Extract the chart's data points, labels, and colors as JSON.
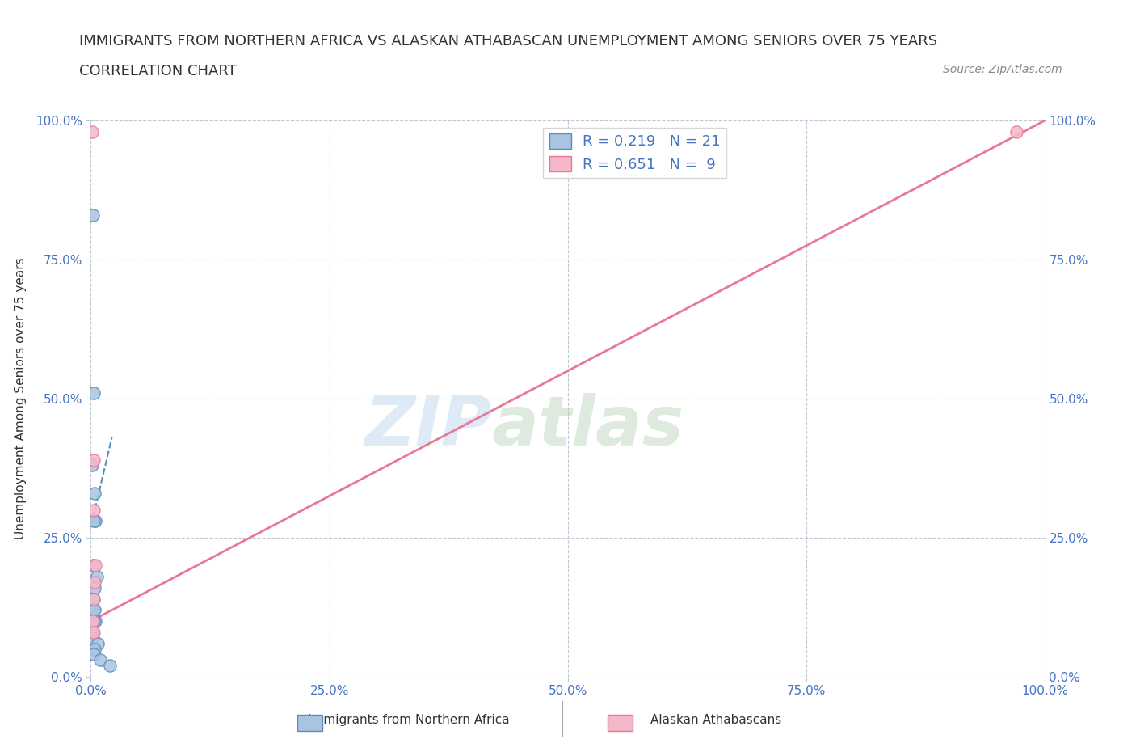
{
  "title_line1": "IMMIGRANTS FROM NORTHERN AFRICA VS ALASKAN ATHABASCAN UNEMPLOYMENT AMONG SENIORS OVER 75 YEARS",
  "title_line2": "CORRELATION CHART",
  "source": "Source: ZipAtlas.com",
  "ylabel": "Unemployment Among Seniors over 75 years",
  "xlim": [
    0,
    1.0
  ],
  "ylim": [
    0,
    1.0
  ],
  "xtick_labels": [
    "0.0%",
    "25.0%",
    "50.0%",
    "75.0%",
    "100.0%"
  ],
  "xtick_vals": [
    0,
    0.25,
    0.5,
    0.75,
    1.0
  ],
  "ytick_labels": [
    "0.0%",
    "25.0%",
    "50.0%",
    "75.0%",
    "100.0%"
  ],
  "ytick_vals": [
    0,
    0.25,
    0.5,
    0.75,
    1.0
  ],
  "watermark_zip": "ZIP",
  "watermark_atlas": "atlas",
  "blue_color": "#a8c4e0",
  "blue_line_color": "#5b8db8",
  "pink_color": "#f4b8c8",
  "pink_line_color": "#e87898",
  "blue_scatter_x": [
    0.002,
    0.003,
    0.001,
    0.004,
    0.005,
    0.003,
    0.002,
    0.006,
    0.004,
    0.003,
    0.002,
    0.004,
    0.005,
    0.003,
    0.001,
    0.002,
    0.007,
    0.004,
    0.003,
    0.01,
    0.02
  ],
  "blue_scatter_y": [
    0.83,
    0.51,
    0.38,
    0.33,
    0.28,
    0.28,
    0.2,
    0.18,
    0.16,
    0.14,
    0.12,
    0.12,
    0.1,
    0.1,
    0.08,
    0.07,
    0.06,
    0.05,
    0.04,
    0.03,
    0.02
  ],
  "pink_scatter_x": [
    0.001,
    0.003,
    0.003,
    0.005,
    0.004,
    0.003,
    0.002,
    0.003,
    0.97
  ],
  "pink_scatter_y": [
    0.98,
    0.39,
    0.3,
    0.2,
    0.17,
    0.14,
    0.1,
    0.08,
    0.98
  ],
  "blue_R": 0.219,
  "blue_N": 21,
  "pink_R": 0.651,
  "pink_N": 9,
  "blue_trend_x": [
    0.0,
    0.022
  ],
  "blue_trend_y": [
    0.27,
    0.43
  ],
  "pink_trend_x": [
    0.0,
    1.0
  ],
  "pink_trend_y": [
    0.1,
    1.0
  ],
  "legend_label_blue": "Immigrants from Northern Africa",
  "legend_label_pink": "Alaskan Athabascans"
}
